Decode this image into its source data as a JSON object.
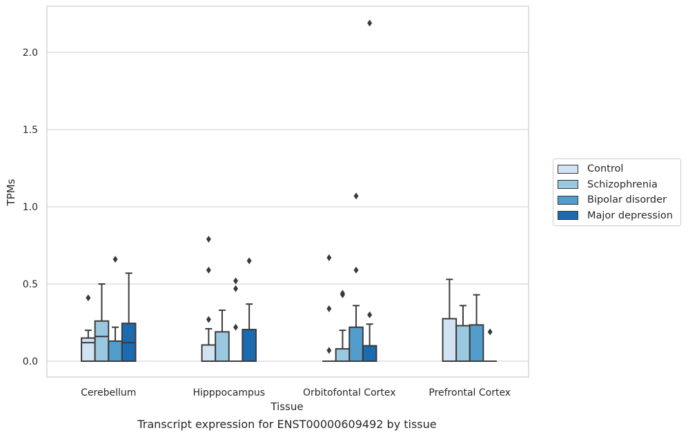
{
  "caption": "Transcript expression for ENST00000609492 by tissue",
  "chart_data": {
    "type": "box",
    "xlabel": "Tissue",
    "ylabel": "TPMs",
    "ylim": [
      -0.11,
      2.31
    ],
    "yticks": [
      "0.0",
      "0.5",
      "1.0",
      "1.5",
      "2.0"
    ],
    "ytick_values": [
      0.0,
      0.5,
      1.0,
      1.5,
      2.0
    ],
    "grid": "horizontal",
    "legend_position": "right",
    "categories": [
      "Cerebellum",
      "Hipppocampus",
      "Orbitofontal Cortex",
      "Prefrontal Cortex"
    ],
    "series": [
      {
        "name": "Control",
        "color": "#d1e2f2",
        "boxes": [
          {
            "q1": 0.0,
            "median": 0.12,
            "q3": 0.15,
            "whisker_low": 0.0,
            "whisker_high": 0.2,
            "outliers": [
              0.41
            ]
          },
          {
            "q1": 0.0,
            "median": 0.0,
            "q3": 0.105,
            "whisker_low": 0.0,
            "whisker_high": 0.21,
            "outliers": [
              0.27,
              0.59,
              0.79
            ]
          },
          {
            "q1": 0.0,
            "median": 0.0,
            "q3": 0.0,
            "whisker_low": 0.0,
            "whisker_high": 0.0,
            "outliers": [
              0.07,
              0.34,
              0.67
            ]
          },
          {
            "q1": 0.0,
            "median": 0.0,
            "q3": 0.275,
            "whisker_low": 0.0,
            "whisker_high": 0.53,
            "outliers": []
          }
        ]
      },
      {
        "name": "Schizophrenia",
        "color": "#9ac8e0",
        "boxes": [
          {
            "q1": 0.0,
            "median": 0.16,
            "q3": 0.26,
            "whisker_low": 0.0,
            "whisker_high": 0.5,
            "outliers": []
          },
          {
            "q1": 0.0,
            "median": 0.0,
            "q3": 0.19,
            "whisker_low": 0.0,
            "whisker_high": 0.33,
            "outliers": []
          },
          {
            "q1": 0.0,
            "median": 0.0,
            "q3": 0.08,
            "whisker_low": 0.0,
            "whisker_high": 0.2,
            "outliers": [
              0.43,
              0.44
            ]
          },
          {
            "q1": 0.0,
            "median": 0.0,
            "q3": 0.23,
            "whisker_low": 0.0,
            "whisker_high": 0.36,
            "outliers": []
          }
        ]
      },
      {
        "name": "Bipolar disorder",
        "color": "#529dcc",
        "boxes": [
          {
            "q1": 0.0,
            "median": 0.0,
            "q3": 0.13,
            "whisker_low": 0.0,
            "whisker_high": 0.22,
            "outliers": [
              0.66
            ]
          },
          {
            "q1": 0.0,
            "median": 0.0,
            "q3": 0.0,
            "whisker_low": 0.0,
            "whisker_high": 0.0,
            "outliers": [
              0.22,
              0.47,
              0.52
            ]
          },
          {
            "q1": 0.0,
            "median": 0.0,
            "q3": 0.22,
            "whisker_low": 0.0,
            "whisker_high": 0.36,
            "outliers": [
              0.59,
              1.07
            ]
          },
          {
            "q1": 0.0,
            "median": 0.0,
            "q3": 0.235,
            "whisker_low": 0.0,
            "whisker_high": 0.43,
            "outliers": []
          }
        ]
      },
      {
        "name": "Major depression",
        "color": "#1c6aaf",
        "boxes": [
          {
            "q1": 0.0,
            "median": 0.12,
            "q3": 0.245,
            "whisker_low": 0.0,
            "whisker_high": 0.57,
            "outliers": []
          },
          {
            "q1": 0.0,
            "median": 0.0,
            "q3": 0.205,
            "whisker_low": 0.0,
            "whisker_high": 0.37,
            "outliers": [
              0.65
            ]
          },
          {
            "q1": 0.0,
            "median": 0.0,
            "q3": 0.1,
            "whisker_low": 0.0,
            "whisker_high": 0.24,
            "outliers": [
              0.3,
              2.19
            ]
          },
          {
            "q1": 0.0,
            "median": 0.0,
            "q3": 0.0,
            "whisker_low": 0.0,
            "whisker_high": 0.0,
            "outliers": [
              0.19
            ]
          }
        ]
      }
    ]
  }
}
